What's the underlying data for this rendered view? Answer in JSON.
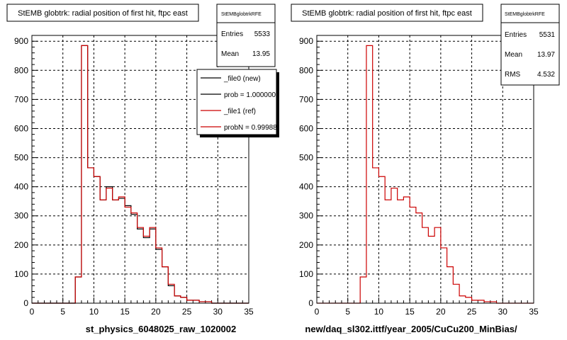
{
  "chart_data": [
    {
      "type": "histogram",
      "title": "StEMB globtrk: radial position of first hit, ftpc east",
      "xlabel": "st_physics_6048025_raw_1020002",
      "ylabel": "",
      "xlim": [
        0,
        35
      ],
      "ylim": [
        0,
        920
      ],
      "bin_width": 1,
      "grid": true,
      "x_ticks": [
        "0",
        "5",
        "10",
        "15",
        "20",
        "25",
        "30",
        "35"
      ],
      "y_ticks": [
        "0",
        "100",
        "200",
        "300",
        "400",
        "500",
        "600",
        "700",
        "800",
        "900"
      ],
      "stats": {
        "name": "StEMBglobtrkRFE",
        "rows": [
          {
            "label": "Entries",
            "value": "5533"
          },
          {
            "label": "Mean",
            "value": "13.95"
          }
        ]
      },
      "legend": {
        "placement": "top-right",
        "entries": [
          {
            "label": "_file0 (new)",
            "color": "#000000"
          },
          {
            "label": "prob = 1.000000",
            "color": "#000000"
          },
          {
            "label": "_file1 (ref)",
            "color": "#cc0000"
          },
          {
            "label": "probN = 0.99988",
            "color": "#cc0000"
          }
        ]
      },
      "series": [
        {
          "name": "_file0 (new)",
          "color": "#000000",
          "values": [
            0,
            0,
            0,
            0,
            0,
            0,
            0,
            90,
            885,
            465,
            435,
            355,
            400,
            355,
            360,
            335,
            305,
            255,
            225,
            255,
            185,
            125,
            60,
            25,
            20,
            10,
            10,
            5,
            5,
            0,
            0,
            0,
            0,
            0,
            0
          ]
        },
        {
          "name": "_file1 (ref)",
          "color": "#cc0000",
          "values": [
            0,
            0,
            0,
            0,
            0,
            0,
            0,
            90,
            885,
            465,
            435,
            355,
            395,
            355,
            365,
            330,
            310,
            260,
            230,
            260,
            190,
            125,
            65,
            25,
            20,
            10,
            10,
            5,
            5,
            0,
            0,
            0,
            0,
            0,
            0
          ]
        }
      ]
    },
    {
      "type": "histogram",
      "title": "StEMB globtrk: radial position of first hit, ftpc east",
      "xlabel": "new/daq_sl302.ittf/year_2005/CuCu200_MinBias/",
      "ylabel": "",
      "xlim": [
        0,
        35
      ],
      "ylim": [
        0,
        920
      ],
      "bin_width": 1,
      "grid": true,
      "x_ticks": [
        "0",
        "5",
        "10",
        "15",
        "20",
        "25",
        "30",
        "35"
      ],
      "y_ticks": [
        "0",
        "100",
        "200",
        "300",
        "400",
        "500",
        "600",
        "700",
        "800",
        "900"
      ],
      "stats": {
        "name": "StEMBglobtrkRFE",
        "rows": [
          {
            "label": "Entries",
            "value": "5531"
          },
          {
            "label": "Mean",
            "value": "13.97"
          },
          {
            "label": "RMS",
            "value": "4.532"
          }
        ]
      },
      "series": [
        {
          "name": "",
          "color": "#cc0000",
          "values": [
            0,
            0,
            0,
            0,
            0,
            0,
            0,
            90,
            885,
            465,
            435,
            355,
            395,
            355,
            365,
            330,
            310,
            260,
            230,
            260,
            190,
            125,
            65,
            25,
            20,
            10,
            10,
            5,
            5,
            0,
            0,
            0,
            0,
            0,
            0
          ]
        }
      ]
    }
  ]
}
